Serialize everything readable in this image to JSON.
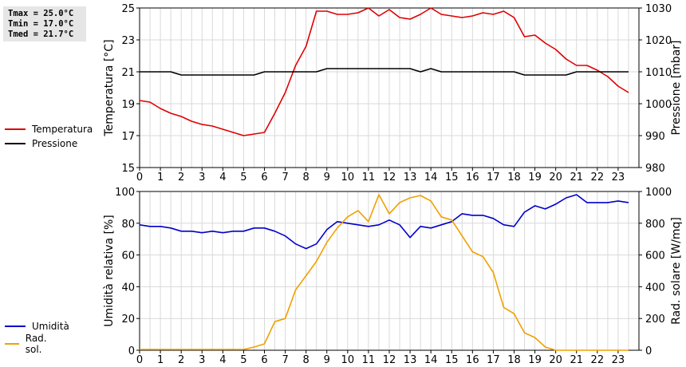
{
  "stats": {
    "tmax": "Tmax = 25.0°C",
    "tmin": "Tmin = 17.0°C",
    "tmed": "Tmed = 21.7°C"
  },
  "chart_data": [
    {
      "type": "line",
      "title": "",
      "xlabel": "",
      "x_ticks": [
        "0",
        "1",
        "2",
        "3",
        "4",
        "5",
        "6",
        "7",
        "8",
        "9",
        "10",
        "11",
        "12",
        "13",
        "14",
        "15",
        "16",
        "17",
        "18",
        "19",
        "20",
        "21",
        "22",
        "23"
      ],
      "ylabel_left": "Temperatura [°C]",
      "ylabel_right": "Pressione [mbar]",
      "ylim_left": [
        15,
        25
      ],
      "ylim_right": [
        980,
        1030
      ],
      "yticks_left": [
        "15",
        "17",
        "19",
        "21",
        "23",
        "25"
      ],
      "yticks_right": [
        "980",
        "990",
        "1000",
        "1010",
        "1020",
        "1030"
      ],
      "grid": true,
      "legend_placement": "left",
      "series": [
        {
          "name": "Temperatura",
          "axis": "left",
          "color": "#e00000",
          "points": [
            [
              0,
              19.2
            ],
            [
              0.5,
              19.1
            ],
            [
              1,
              18.7
            ],
            [
              1.5,
              18.4
            ],
            [
              2,
              18.2
            ],
            [
              2.5,
              17.9
            ],
            [
              3,
              17.7
            ],
            [
              3.5,
              17.6
            ],
            [
              4,
              17.4
            ],
            [
              4.5,
              17.2
            ],
            [
              5,
              17.0
            ],
            [
              5.5,
              17.1
            ],
            [
              6,
              17.2
            ],
            [
              6.5,
              18.4
            ],
            [
              7,
              19.7
            ],
            [
              7.5,
              21.4
            ],
            [
              8,
              22.6
            ],
            [
              8.5,
              24.8
            ],
            [
              9,
              24.8
            ],
            [
              9.5,
              24.6
            ],
            [
              10,
              24.6
            ],
            [
              10.5,
              24.7
            ],
            [
              11,
              25.0
            ],
            [
              11.5,
              24.5
            ],
            [
              12,
              24.9
            ],
            [
              12.5,
              24.4
            ],
            [
              13,
              24.3
            ],
            [
              13.5,
              24.6
            ],
            [
              14,
              25.0
            ],
            [
              14.5,
              24.6
            ],
            [
              15,
              24.5
            ],
            [
              15.5,
              24.4
            ],
            [
              16,
              24.5
            ],
            [
              16.5,
              24.7
            ],
            [
              17,
              24.6
            ],
            [
              17.5,
              24.8
            ],
            [
              18,
              24.4
            ],
            [
              18.5,
              23.2
            ],
            [
              19,
              23.3
            ],
            [
              19.5,
              22.8
            ],
            [
              20,
              22.4
            ],
            [
              20.5,
              21.8
            ],
            [
              21,
              21.4
            ],
            [
              21.5,
              21.4
            ],
            [
              22,
              21.1
            ],
            [
              22.5,
              20.7
            ],
            [
              23,
              20.1
            ],
            [
              23.5,
              19.7
            ]
          ]
        },
        {
          "name": "Pressione",
          "axis": "right",
          "color": "#000000",
          "points": [
            [
              0,
              1010
            ],
            [
              1,
              1010
            ],
            [
              1.5,
              1010
            ],
            [
              2,
              1009
            ],
            [
              3,
              1009
            ],
            [
              4,
              1009
            ],
            [
              5,
              1009
            ],
            [
              5.5,
              1009
            ],
            [
              6,
              1010
            ],
            [
              7,
              1010
            ],
            [
              8.5,
              1010
            ],
            [
              9,
              1011
            ],
            [
              10,
              1011
            ],
            [
              11,
              1011
            ],
            [
              12,
              1011
            ],
            [
              13,
              1011
            ],
            [
              13.5,
              1010
            ],
            [
              14,
              1011
            ],
            [
              14.5,
              1010
            ],
            [
              15,
              1010
            ],
            [
              16,
              1010
            ],
            [
              17,
              1010
            ],
            [
              17.5,
              1010
            ],
            [
              18,
              1010
            ],
            [
              18.5,
              1009
            ],
            [
              19,
              1009
            ],
            [
              20,
              1009
            ],
            [
              20.5,
              1009
            ],
            [
              21,
              1010
            ],
            [
              22,
              1010
            ],
            [
              23,
              1010
            ],
            [
              23.5,
              1010
            ]
          ]
        }
      ]
    },
    {
      "type": "line",
      "title": "",
      "xlabel": "",
      "x_ticks": [
        "0",
        "1",
        "2",
        "3",
        "4",
        "5",
        "6",
        "7",
        "8",
        "9",
        "10",
        "11",
        "12",
        "13",
        "14",
        "15",
        "16",
        "17",
        "18",
        "19",
        "20",
        "21",
        "22",
        "23"
      ],
      "ylabel_left": "Umidità relativa [%]",
      "ylabel_right": "Rad. solare [W/mq]",
      "ylim_left": [
        0,
        100
      ],
      "ylim_right": [
        0,
        1000
      ],
      "yticks_left": [
        "0",
        "20",
        "40",
        "60",
        "80",
        "100"
      ],
      "yticks_right": [
        "0",
        "200",
        "400",
        "600",
        "800",
        "1000"
      ],
      "grid": true,
      "legend_placement": "left",
      "series": [
        {
          "name": "Umidità",
          "axis": "left",
          "color": "#0000cc",
          "points": [
            [
              0,
              79
            ],
            [
              0.5,
              78
            ],
            [
              1,
              78
            ],
            [
              1.5,
              77
            ],
            [
              2,
              75
            ],
            [
              2.5,
              75
            ],
            [
              3,
              74
            ],
            [
              3.5,
              75
            ],
            [
              4,
              74
            ],
            [
              4.5,
              75
            ],
            [
              5,
              75
            ],
            [
              5.5,
              77
            ],
            [
              6,
              77
            ],
            [
              6.5,
              75
            ],
            [
              7,
              72
            ],
            [
              7.5,
              67
            ],
            [
              8,
              64
            ],
            [
              8.5,
              67
            ],
            [
              9,
              76
            ],
            [
              9.5,
              81
            ],
            [
              10,
              80
            ],
            [
              10.5,
              79
            ],
            [
              11,
              78
            ],
            [
              11.5,
              79
            ],
            [
              12,
              82
            ],
            [
              12.5,
              79
            ],
            [
              13,
              71
            ],
            [
              13.5,
              78
            ],
            [
              14,
              77
            ],
            [
              14.5,
              79
            ],
            [
              15,
              81
            ],
            [
              15.5,
              86
            ],
            [
              16,
              85
            ],
            [
              16.5,
              85
            ],
            [
              17,
              83
            ],
            [
              17.5,
              79
            ],
            [
              18,
              78
            ],
            [
              18.5,
              87
            ],
            [
              19,
              91
            ],
            [
              19.5,
              89
            ],
            [
              20,
              92
            ],
            [
              20.5,
              96
            ],
            [
              21,
              98
            ],
            [
              21.5,
              93
            ],
            [
              22,
              93
            ],
            [
              22.5,
              93
            ],
            [
              23,
              94
            ],
            [
              23.5,
              93
            ]
          ]
        },
        {
          "name": "Rad. sol.",
          "axis": "right",
          "color": "#f0a000",
          "points": [
            [
              0,
              5
            ],
            [
              1,
              5
            ],
            [
              2,
              5
            ],
            [
              3,
              5
            ],
            [
              4,
              5
            ],
            [
              5,
              5
            ],
            [
              5.5,
              20
            ],
            [
              6,
              40
            ],
            [
              6.5,
              180
            ],
            [
              7,
              200
            ],
            [
              7.5,
              380
            ],
            [
              8,
              470
            ],
            [
              8.5,
              560
            ],
            [
              9,
              680
            ],
            [
              9.5,
              770
            ],
            [
              10,
              840
            ],
            [
              10.5,
              880
            ],
            [
              11,
              810
            ],
            [
              11.5,
              980
            ],
            [
              12,
              860
            ],
            [
              12.5,
              930
            ],
            [
              13,
              960
            ],
            [
              13.5,
              975
            ],
            [
              14,
              940
            ],
            [
              14.5,
              840
            ],
            [
              15,
              820
            ],
            [
              15.5,
              720
            ],
            [
              16,
              620
            ],
            [
              16.5,
              590
            ],
            [
              17,
              490
            ],
            [
              17.5,
              270
            ],
            [
              18,
              230
            ],
            [
              18.5,
              110
            ],
            [
              19,
              80
            ],
            [
              19.5,
              20
            ],
            [
              20,
              0
            ],
            [
              21,
              0
            ],
            [
              22,
              0
            ],
            [
              23,
              0
            ],
            [
              23.5,
              0
            ]
          ]
        }
      ]
    }
  ]
}
